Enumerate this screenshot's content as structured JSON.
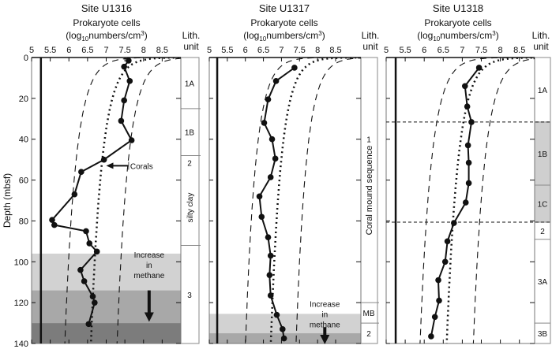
{
  "chart_data": [
    {
      "type": "line",
      "title": "Site U1316",
      "xlabel_line1": "Prokaryote cells",
      "xlabel_line2": {
        "pre": "(log",
        "sub": "10",
        "mid": "numbers/cm",
        "sup": "3",
        "post": ")"
      },
      "ylabel": "Depth (mbsf)",
      "lith_header": [
        "Lith.",
        "unit"
      ],
      "xticks": [
        "5",
        "5.5",
        "6",
        "6.5",
        "7",
        "7.5",
        "8",
        "8.5"
      ],
      "xtick_values": [
        5,
        5.5,
        6,
        6.5,
        7,
        7.5,
        8,
        8.5
      ],
      "xlim": [
        5,
        9
      ],
      "yticks": [
        "0",
        "20",
        "40",
        "60",
        "80",
        "100",
        "120",
        "140"
      ],
      "ytick_values": [
        0,
        20,
        40,
        60,
        80,
        100,
        120,
        140
      ],
      "ylim": [
        0,
        140
      ],
      "detection_limit": 5.25,
      "model": {
        "intercept": 8.05,
        "slope": -0.68,
        "band": 0.7
      },
      "points": [
        [
          1.5,
          7.6
        ],
        [
          4.5,
          7.48
        ],
        [
          11.5,
          7.63
        ],
        [
          21,
          7.48
        ],
        [
          31,
          7.4
        ],
        [
          40.5,
          7.68
        ],
        [
          50,
          6.94
        ],
        [
          56,
          6.33
        ],
        [
          67,
          6.15
        ],
        [
          79.5,
          5.55
        ],
        [
          82,
          5.61
        ],
        [
          85,
          6.46
        ],
        [
          91,
          6.55
        ],
        [
          95,
          6.75
        ],
        [
          104,
          6.31
        ],
        [
          109.5,
          6.41
        ],
        [
          117,
          6.64
        ],
        [
          120,
          6.69
        ],
        [
          130.5,
          6.53
        ]
      ],
      "shading": [
        {
          "from": 96,
          "to": 114,
          "color": "#d2d2d2"
        },
        {
          "from": 114,
          "to": 130,
          "color": "#a8a8a8"
        },
        {
          "from": 130,
          "to": 140,
          "color": "#7c7c7c"
        }
      ],
      "lith_units": [
        {
          "label": "1A",
          "from": 0,
          "to": 25,
          "color": "#ffffff"
        },
        {
          "label": "1B",
          "from": 25,
          "to": 48,
          "color": "#ffffff"
        },
        {
          "label": "2",
          "from": 48,
          "to": 55,
          "color": "#ffffff"
        },
        {
          "label": "silty clay",
          "from": 55,
          "to": 92,
          "color": "#ffffff",
          "rotated": true,
          "noline": true
        },
        {
          "label": "3",
          "from": 92,
          "to": 140,
          "color": "#ffffff"
        }
      ],
      "annotations": [
        {
          "kind": "corals",
          "text": "Corals",
          "depth": 53,
          "x_from": 7.6,
          "x_to": 7.0
        },
        {
          "kind": "methane",
          "lines": [
            "Increase",
            "in",
            "methane"
          ],
          "x": 8.15,
          "depth_text": 98,
          "arrow_from": 114,
          "arrow_to": 129
        }
      ]
    },
    {
      "type": "line",
      "title": "Site U1317",
      "xlabel_line1": "Prokaryote cells",
      "xlabel_line2": {
        "pre": "(log",
        "sub": "10",
        "mid": "numbers/cm",
        "sup": "3",
        "post": ")"
      },
      "lith_header": [
        "Lith.",
        "unit"
      ],
      "xticks": [
        "5",
        "5.5",
        "6",
        "6.5",
        "7",
        "7.5",
        "8",
        "8.5"
      ],
      "xtick_values": [
        5,
        5.5,
        6,
        6.5,
        7,
        7.5,
        8,
        8.5
      ],
      "xlim": [
        5,
        9.2
      ],
      "ylim": [
        0,
        140
      ],
      "detection_limit": 5.22,
      "model": {
        "intercept": 8.1,
        "slope": -0.65,
        "band": 0.7
      },
      "points": [
        [
          5,
          7.36
        ],
        [
          11.5,
          6.85
        ],
        [
          20.5,
          6.63
        ],
        [
          32,
          6.52
        ],
        [
          40,
          6.74
        ],
        [
          49.5,
          6.83
        ],
        [
          58.6,
          6.7
        ],
        [
          68,
          6.39
        ],
        [
          78,
          6.45
        ],
        [
          88,
          6.63
        ],
        [
          97,
          6.7
        ],
        [
          106.5,
          6.67
        ],
        [
          116.5,
          6.7
        ],
        [
          126,
          6.87
        ],
        [
          133,
          7.03
        ],
        [
          137.5,
          7.07
        ]
      ],
      "shading": [
        {
          "from": 125.5,
          "to": 135,
          "color": "#d2d2d2"
        },
        {
          "from": 135,
          "to": 140,
          "color": "#a8a8a8"
        }
      ],
      "lith_units": [
        {
          "label": "1",
          "from": 0,
          "to": 120,
          "color": "#ffffff",
          "label_depth": 40
        },
        {
          "label": "MB",
          "from": 120,
          "to": 130,
          "color": "#ffffff"
        },
        {
          "label": "2",
          "from": 130,
          "to": 140,
          "color": "#ffffff"
        }
      ],
      "lith_side_label": "Coral mound sequence",
      "annotations": [
        {
          "kind": "methane",
          "lines": [
            "Increase",
            "in",
            "methane"
          ],
          "x": 8.2,
          "depth_text": 122,
          "arrow_from": 132,
          "arrow_to": 140
        }
      ]
    },
    {
      "type": "line",
      "title": "Site U1318",
      "xlabel_line1": "Prokaryote cells",
      "xlabel_line2": {
        "pre": "(log",
        "sub": "10",
        "mid": "numbers/cm",
        "sup": "3",
        "post": ")"
      },
      "lith_header": [
        "Lith.",
        "unit"
      ],
      "xticks": [
        "5",
        "5.5",
        "6",
        "6.5",
        "7",
        "7.5",
        "8",
        "8.5"
      ],
      "xtick_values": [
        5,
        5.5,
        6,
        6.5,
        7,
        7.5,
        8,
        8.5
      ],
      "xlim": [
        5,
        8.9
      ],
      "ylim": [
        0,
        140
      ],
      "detection_limit": 5.25,
      "model": {
        "intercept": 8.05,
        "slope": -0.68,
        "band": 0.7
      },
      "points": [
        [
          5,
          7.44
        ],
        [
          14,
          7.07
        ],
        [
          24,
          7.13
        ],
        [
          31.6,
          7.24
        ],
        [
          43,
          7.15
        ],
        [
          51.5,
          7.17
        ],
        [
          61.5,
          7.17
        ],
        [
          71,
          7.09
        ],
        [
          81,
          6.78
        ],
        [
          90,
          6.61
        ],
        [
          100,
          6.55
        ],
        [
          109,
          6.37
        ],
        [
          119,
          6.39
        ],
        [
          127,
          6.28
        ],
        [
          136.5,
          6.18
        ]
      ],
      "boundaries": [
        31.6,
        80.6
      ],
      "shading": [],
      "lith_units": [
        {
          "label": "1A",
          "from": 0,
          "to": 31.6,
          "color": "#ffffff"
        },
        {
          "label": "1B",
          "from": 31.6,
          "to": 62.5,
          "color": "#cfcfcf"
        },
        {
          "label": "1C",
          "from": 62.5,
          "to": 80.6,
          "color": "#cfcfcf"
        },
        {
          "label": "2",
          "from": 80.6,
          "to": 89,
          "color": "#ffffff"
        },
        {
          "label": "3A",
          "from": 89,
          "to": 130,
          "color": "#ffffff"
        },
        {
          "label": "3B",
          "from": 130,
          "to": 140,
          "color": "#ffffff"
        }
      ],
      "annotations": []
    }
  ]
}
